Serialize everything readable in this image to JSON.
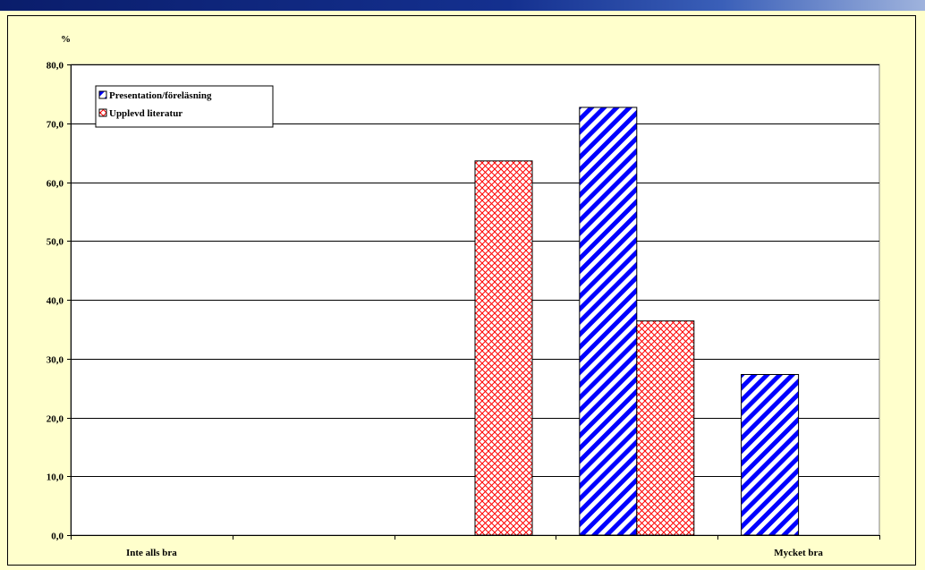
{
  "chart_data": {
    "type": "bar",
    "ylabel": "%",
    "ylim": [
      0,
      80
    ],
    "ytick_step": 10,
    "y_tick_labels": [
      "0,0",
      "10,0",
      "20,0",
      "30,0",
      "40,0",
      "50,0",
      "60,0",
      "70,0",
      "80,0"
    ],
    "categories": [
      "Inte alls bra",
      "",
      "",
      "",
      "Mycket bra"
    ],
    "series": [
      {
        "name": "Presentation/föreläsning",
        "values": [
          0,
          0,
          0,
          72.7,
          27.3
        ],
        "color": "#0000ff",
        "pattern": "diagonal-stripes"
      },
      {
        "name": "Upplevd literatur",
        "values": [
          0,
          0,
          63.6,
          36.4,
          0
        ],
        "color": "#ff0000",
        "pattern": "crosshatch"
      }
    ],
    "grid": true,
    "legend_position": "top-left",
    "plot_background": "#ffffff",
    "page_background": "#ffffcc"
  }
}
